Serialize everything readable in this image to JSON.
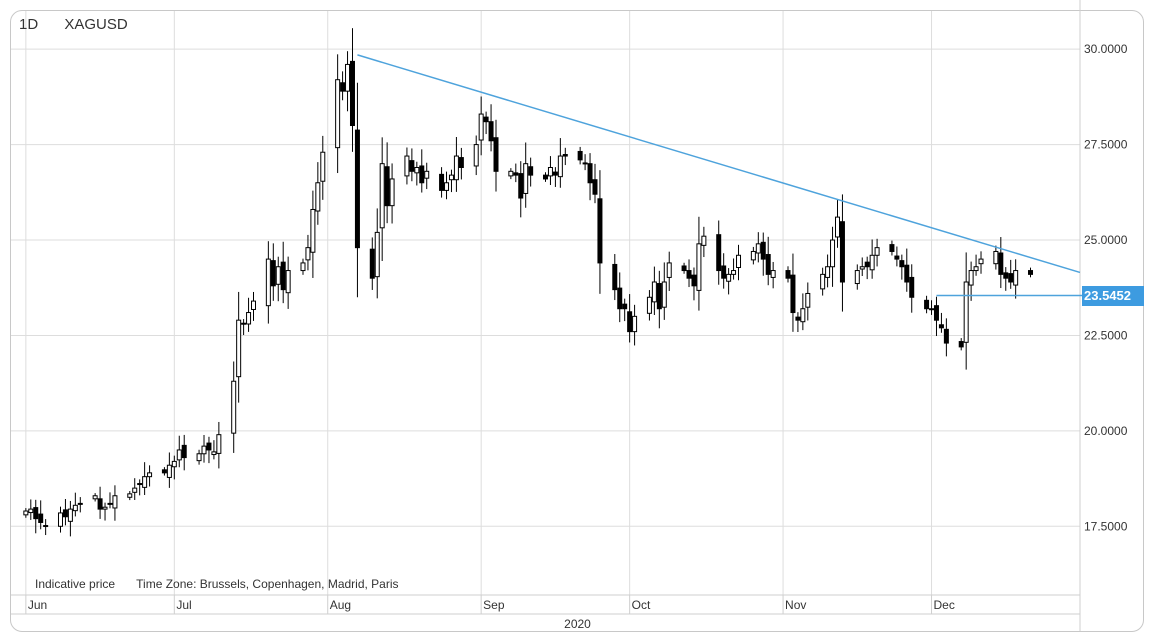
{
  "header": {
    "interval": "1D",
    "symbol": "XAGUSD"
  },
  "footer_note": {
    "price_type": "Indicative price",
    "time_zone": "Time Zone: Brussels, Copenhagen, Madrid, Paris"
  },
  "last_price_label": "23.5452",
  "colors": {
    "trendline": "#4ea3dc",
    "badge": "#3d9be0",
    "grid": "#dddddd",
    "candle": "#000000"
  },
  "chart_data": {
    "type": "candlestick",
    "title": "XAGUSD",
    "interval": "1D",
    "year_label": "2020",
    "x_range": [
      "2020-05-29",
      "2020-12-31"
    ],
    "ylim": [
      15.7,
      31.0
    ],
    "y_ticks": [
      "30.0000",
      "27.5000",
      "25.0000",
      "22.5000",
      "20.0000",
      "17.5000"
    ],
    "y_tick_values": [
      30,
      27.5,
      25,
      22.5,
      20,
      17.5
    ],
    "month_ticks": [
      {
        "label": "Jun",
        "date": "2020-06-01"
      },
      {
        "label": "Jul",
        "date": "2020-07-01"
      },
      {
        "label": "Aug",
        "date": "2020-08-01"
      },
      {
        "label": "Sep",
        "date": "2020-09-01"
      },
      {
        "label": "Oct",
        "date": "2020-10-01"
      },
      {
        "label": "Nov",
        "date": "2020-11-01"
      },
      {
        "label": "Dec",
        "date": "2020-12-01"
      }
    ],
    "trendline": {
      "start": [
        "2020-08-07",
        29.85
      ],
      "end": [
        "2020-12-31",
        24.15
      ]
    },
    "last_price": 23.5452,
    "last_price_start": "2020-12-02",
    "candles_close": [
      17.9,
      17.95,
      17.7,
      17.6,
      17.5,
      17.85,
      17.75,
      17.95,
      18.05,
      18.1,
      18.3,
      17.95,
      18.0,
      18.1,
      18.3,
      18.35,
      18.5,
      18.6,
      18.8,
      18.9,
      18.9,
      19.1,
      19.2,
      19.5,
      19.3,
      19.4,
      19.6,
      19.5,
      19.45,
      19.9,
      21.3,
      22.9,
      22.8,
      23.1,
      23.4,
      24.5,
      23.8,
      24.3,
      23.7,
      24.2,
      24.4,
      24.8,
      25.8,
      26.5,
      27.3,
      29.2,
      28.9,
      29.6,
      28.0,
      24.8,
      24.0,
      25.2,
      27.0,
      25.9,
      26.6,
      27.2,
      26.8,
      26.9,
      26.5,
      26.8,
      26.3,
      26.5,
      26.7,
      27.2,
      26.9,
      27.5,
      28.3,
      28.1,
      27.6,
      26.8,
      26.8,
      26.7,
      26.1,
      27.0,
      26.7,
      26.6,
      26.9,
      26.7,
      27.2,
      27.2,
      27.1,
      27.0,
      26.5,
      26.2,
      24.4,
      23.7,
      23.2,
      23.2,
      22.6,
      23.0,
      23.5,
      23.9,
      23.2,
      23.9,
      24.4,
      24.2,
      24.0,
      23.8,
      24.9,
      25.1,
      24.2,
      24.0,
      24.1,
      24.2,
      24.6,
      24.7,
      24.9,
      24.5,
      24.1,
      24.2,
      24.0,
      23.1,
      22.9,
      23.2,
      23.6,
      24.1,
      24.3,
      25.0,
      25.6,
      23.9,
      24.2,
      24.3,
      24.3,
      24.6,
      24.8,
      24.7,
      24.5,
      24.3,
      23.9,
      23.5,
      23.2,
      23.2,
      22.9,
      22.7,
      22.3,
      22.2,
      23.9,
      24.2,
      24.3,
      24.5,
      24.7,
      24.1,
      24.0,
      23.9,
      24.2,
      24.1
    ]
  }
}
